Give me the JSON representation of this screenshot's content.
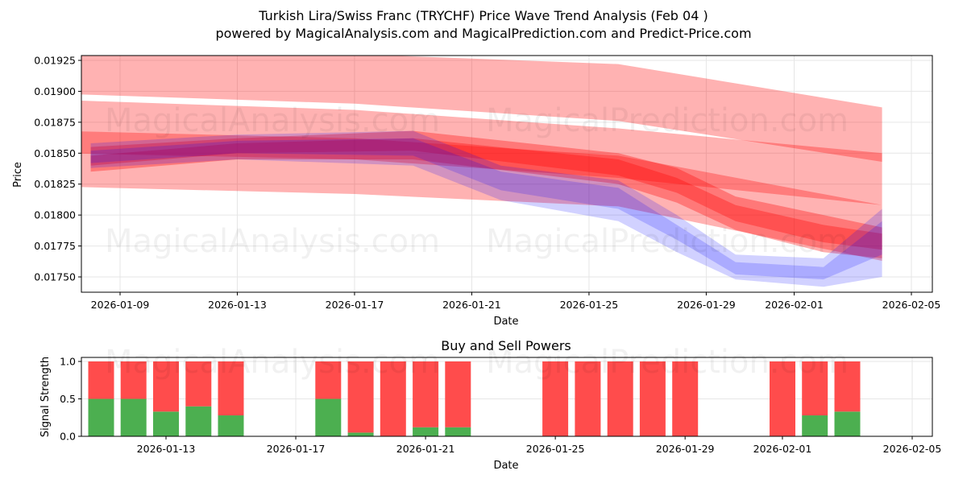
{
  "title_line1": "Turkish Lira/Swiss Franc (TRYCHF) Price Wave Trend Analysis (Feb 04 )",
  "title_line2": "powered by MagicalAnalysis.com and MagicalPrediction.com and Predict-Price.com",
  "watermarks": {
    "top_row": [
      "MagicalAnalysis.com",
      "MagicalPrediction.com"
    ],
    "mid_row": [
      "MagicalAnalysis.com",
      "MagicalPrediction.com"
    ],
    "bottom_row": [
      "MagicalAnalysis.com",
      "MagicalPrediction.com"
    ]
  },
  "colors": {
    "red_band": "#ff0000",
    "blue_band": "#0000ff",
    "buy": "#4caf50",
    "sell": "#ff4c4c",
    "grid": "#e6e6e6"
  },
  "chart_data": [
    {
      "type": "area",
      "title": "",
      "xlabel": "Date",
      "ylabel": "Price",
      "x_domain": [
        "2026-01-07",
        "2026-02-05"
      ],
      "ylim": [
        0.01735,
        0.0193
      ],
      "x_ticks": [
        "2026-01-09",
        "2026-01-13",
        "2026-01-17",
        "2026-01-21",
        "2026-01-25",
        "2026-01-29",
        "2026-02-01",
        "2026-02-05"
      ],
      "y_ticks": [
        "0.01750",
        "0.01775",
        "0.01800",
        "0.01825",
        "0.01850",
        "0.01875",
        "0.01900",
        "0.01925"
      ],
      "grid": true,
      "red_bands": [
        {
          "name": "upper-envelope",
          "x": [
            "2026-01-07",
            "2026-01-17",
            "2026-01-26",
            "2026-02-04"
          ],
          "upper": [
            0.0193,
            0.0193,
            0.01922,
            0.01887
          ],
          "lower": [
            0.01898,
            0.0189,
            0.01876,
            0.01843
          ]
        },
        {
          "name": "middle-envelope",
          "x": [
            "2026-01-07",
            "2026-01-17",
            "2026-01-26",
            "2026-02-04"
          ],
          "upper": [
            0.01893,
            0.01885,
            0.0187,
            0.0185
          ],
          "lower": [
            0.0185,
            0.01845,
            0.0183,
            0.01808
          ]
        },
        {
          "name": "lower-envelope",
          "x": [
            "2026-01-07",
            "2026-01-17",
            "2026-01-26",
            "2026-02-04"
          ],
          "upper": [
            0.01868,
            0.01862,
            0.01848,
            0.01808
          ],
          "lower": [
            0.01823,
            0.01817,
            0.01807,
            0.01763
          ]
        },
        {
          "name": "price-wave-red-1",
          "x": [
            "2026-01-08",
            "2026-01-13",
            "2026-01-19",
            "2026-01-26",
            "2026-01-28",
            "2026-01-30",
            "2026-02-02",
            "2026-02-04"
          ],
          "upper": [
            0.01855,
            0.01862,
            0.01868,
            0.0185,
            0.01838,
            0.01815,
            0.018,
            0.0179
          ],
          "lower": [
            0.01835,
            0.01845,
            0.01845,
            0.01825,
            0.0181,
            0.01788,
            0.0177,
            0.01765
          ]
        },
        {
          "name": "price-wave-red-2",
          "x": [
            "2026-01-08",
            "2026-01-13",
            "2026-01-19",
            "2026-01-26",
            "2026-01-28",
            "2026-01-30",
            "2026-02-02",
            "2026-02-04"
          ],
          "upper": [
            0.01848,
            0.01858,
            0.01862,
            0.01845,
            0.0183,
            0.01808,
            0.01792,
            0.01785
          ],
          "lower": [
            0.0184,
            0.0185,
            0.01852,
            0.01832,
            0.01818,
            0.01795,
            0.01778,
            0.01772
          ]
        }
      ],
      "blue_bands": [
        {
          "name": "price-wave-blue-1",
          "x": [
            "2026-01-08",
            "2026-01-13",
            "2026-01-19",
            "2026-01-22",
            "2026-01-26",
            "2026-01-28",
            "2026-01-30",
            "2026-02-02",
            "2026-02-04"
          ],
          "upper": [
            0.01858,
            0.01865,
            0.01868,
            0.0184,
            0.01828,
            0.018,
            0.01768,
            0.01765,
            0.01805
          ],
          "lower": [
            0.01838,
            0.01845,
            0.0184,
            0.01812,
            0.01795,
            0.0177,
            0.01748,
            0.01742,
            0.0175
          ]
        },
        {
          "name": "price-wave-blue-2",
          "x": [
            "2026-01-08",
            "2026-01-13",
            "2026-01-19",
            "2026-01-22",
            "2026-01-26",
            "2026-01-28",
            "2026-01-30",
            "2026-02-02",
            "2026-02-04"
          ],
          "upper": [
            0.01852,
            0.0186,
            0.01862,
            0.01835,
            0.01822,
            0.01792,
            0.01762,
            0.01758,
            0.01795
          ],
          "lower": [
            0.01842,
            0.0185,
            0.01848,
            0.0182,
            0.01805,
            0.0178,
            0.01752,
            0.01748,
            0.01768
          ]
        }
      ]
    },
    {
      "type": "bar",
      "title": "Buy and Sell Powers",
      "xlabel": "Date",
      "ylabel": "Signal Strength",
      "x_domain": [
        "2026-01-07",
        "2026-02-05"
      ],
      "ylim": [
        0,
        1.05
      ],
      "x_ticks": [
        "2026-01-13",
        "2026-01-17",
        "2026-01-21",
        "2026-01-25",
        "2026-01-29",
        "2026-02-01",
        "2026-02-05"
      ],
      "y_ticks": [
        "0.0",
        "0.5",
        "1.0"
      ],
      "grid": true,
      "categories": [
        "2026-01-11",
        "2026-01-12",
        "2026-01-13",
        "2026-01-14",
        "2026-01-15",
        "2026-01-18",
        "2026-01-19",
        "2026-01-20",
        "2026-01-21",
        "2026-01-22",
        "2026-01-25",
        "2026-01-26",
        "2026-01-27",
        "2026-01-28",
        "2026-01-29",
        "2026-02-01",
        "2026-02-02",
        "2026-02-03"
      ],
      "series": [
        {
          "name": "Buy",
          "values": [
            0.5,
            0.5,
            0.33,
            0.4,
            0.28,
            0.5,
            0.05,
            0.0,
            0.12,
            0.12,
            0.0,
            0.0,
            0.0,
            0.0,
            0.0,
            0.0,
            0.28,
            0.33
          ]
        },
        {
          "name": "Sell",
          "values": [
            0.5,
            0.5,
            0.67,
            0.6,
            0.72,
            0.5,
            0.95,
            1.0,
            0.88,
            0.88,
            1.0,
            1.0,
            1.0,
            1.0,
            1.0,
            1.0,
            0.72,
            0.67
          ]
        }
      ]
    }
  ]
}
